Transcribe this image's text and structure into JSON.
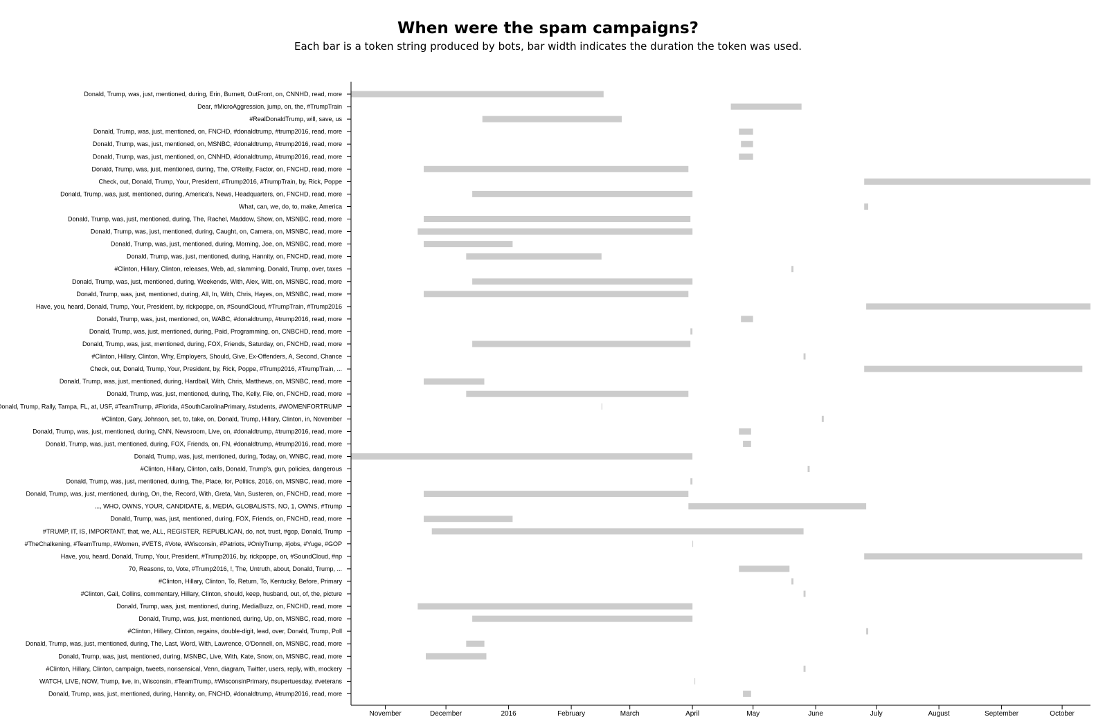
{
  "chart_data": {
    "type": "bar",
    "orientation": "horizontal-timeline",
    "title": "When were the spam campaigns?",
    "subtitle": "Each bar is a token string produced by bots, bar width indicates the duration the token was used.",
    "xlim": [
      "2015-10-15",
      "2016-10-15"
    ],
    "x_ticks": [
      {
        "date": "2015-11-01",
        "label": "November"
      },
      {
        "date": "2015-12-01",
        "label": "December"
      },
      {
        "date": "2016-01-01",
        "label": "2016"
      },
      {
        "date": "2016-02-01",
        "label": "February"
      },
      {
        "date": "2016-03-01",
        "label": "March"
      },
      {
        "date": "2016-04-01",
        "label": "April"
      },
      {
        "date": "2016-05-01",
        "label": "May"
      },
      {
        "date": "2016-06-01",
        "label": "June"
      },
      {
        "date": "2016-07-01",
        "label": "July"
      },
      {
        "date": "2016-08-01",
        "label": "August"
      },
      {
        "date": "2016-09-01",
        "label": "September"
      },
      {
        "date": "2016-10-01",
        "label": "October"
      }
    ],
    "bar_color": "#cccccc",
    "grid": false,
    "items": [
      {
        "label": "Donald, Trump, was, just, mentioned, during, Erin, Burnett, OutFront, on, CNNHD, read, more",
        "start": "2015-10-15",
        "end": "2016-02-17"
      },
      {
        "label": "Dear, #MicroAggression, jump, on, the, #TrumpTrain",
        "start": "2016-04-20",
        "end": "2016-05-25"
      },
      {
        "label": "#RealDonaldTrump, will, save, us",
        "start": "2015-12-19",
        "end": "2016-02-26"
      },
      {
        "label": "Donald, Trump, was, just, mentioned, on, FNCHD, #donaldtrump, #trump2016, read, more",
        "start": "2016-04-24",
        "end": "2016-05-01"
      },
      {
        "label": "Donald, Trump, was, just, mentioned, on, MSNBC, #donaldtrump, #trump2016, read, more",
        "start": "2016-04-25",
        "end": "2016-05-01"
      },
      {
        "label": "Donald, Trump, was, just, mentioned, on, CNNHD, #donaldtrump, #trump2016, read, more",
        "start": "2016-04-24",
        "end": "2016-05-01"
      },
      {
        "label": "Donald, Trump, was, just, mentioned, during, The, O'Reilly, Factor, on, FNCHD, read, more",
        "start": "2015-11-20",
        "end": "2016-03-30"
      },
      {
        "label": "Check, out, Donald, Trump, Your, President, #Trump2016, #TrumpTrain, by, Rick, Poppe",
        "start": "2016-06-25",
        "end": "2016-10-15"
      },
      {
        "label": "Donald, Trump, was, just, mentioned, during, America's, News, Headquarters, on, FNCHD, read, more",
        "start": "2015-12-14",
        "end": "2016-04-01"
      },
      {
        "label": "What, can, we, do, to, make, America",
        "start": "2016-06-25",
        "end": "2016-06-27"
      },
      {
        "label": "Donald, Trump, was, just, mentioned, during, The, Rachel, Maddow, Show, on, MSNBC, read, more",
        "start": "2015-11-20",
        "end": "2016-03-31"
      },
      {
        "label": "Donald, Trump, was, just, mentioned, during, Caught, on, Camera, on, MSNBC, read, more",
        "start": "2015-11-17",
        "end": "2016-04-01"
      },
      {
        "label": "Donald, Trump, was, just, mentioned, during, Morning, Joe, on, MSNBC, read, more",
        "start": "2015-11-20",
        "end": "2016-01-03"
      },
      {
        "label": "Donald, Trump, was, just, mentioned, during, Hannity, on, FNCHD, read, more",
        "start": "2015-12-11",
        "end": "2016-02-16"
      },
      {
        "label": "#Clinton, Hillary, Clinton, releases, Web, ad, slamming, Donald, Trump, over, taxes",
        "start": "2016-05-20",
        "end": "2016-05-21"
      },
      {
        "label": "Donald, Trump, was, just, mentioned, during, Weekends, With, Alex, Witt, on, MSNBC, read, more",
        "start": "2015-12-14",
        "end": "2016-04-01"
      },
      {
        "label": "Donald, Trump, was, just, mentioned, during, All, In, With, Chris, Hayes, on, MSNBC, read, more",
        "start": "2015-11-20",
        "end": "2016-03-30"
      },
      {
        "label": "Have, you, heard, Donald, Trump, Your, President, by, rickpoppe, on, #SoundCloud, #TrumpTrain, #Trump2016",
        "start": "2016-06-26",
        "end": "2016-10-15"
      },
      {
        "label": "Donald, Trump, was, just, mentioned, on, WABC, #donaldtrump, #trump2016, read, more",
        "start": "2016-04-25",
        "end": "2016-05-01"
      },
      {
        "label": "Donald, Trump, was, just, mentioned, during, Paid, Programming, on, CNBCHD, read, more",
        "start": "2016-03-31",
        "end": "2016-04-01"
      },
      {
        "label": "Donald, Trump, was, just, mentioned, during, FOX, Friends, Saturday, on, FNCHD, read, more",
        "start": "2015-12-14",
        "end": "2016-03-31"
      },
      {
        "label": "#Clinton, Hillary, Clinton, Why, Employers, Should, Give, Ex-Offenders, A, Second, Chance",
        "start": "2016-05-26",
        "end": "2016-05-27"
      },
      {
        "label": "Check, out, Donald, Trump, Your, President, by, Rick, Poppe, #Trump2016, #TrumpTrain, ...",
        "start": "2016-06-25",
        "end": "2016-10-11"
      },
      {
        "label": "Donald, Trump, was, just, mentioned, during, Hardball, With, Chris, Matthews, on, MSNBC, read, more",
        "start": "2015-11-20",
        "end": "2015-12-20"
      },
      {
        "label": "Donald, Trump, was, just, mentioned, during, The, Kelly, File, on, FNCHD, read, more",
        "start": "2015-12-11",
        "end": "2016-03-30"
      },
      {
        "label": "Donald, Trump, Rally, Tampa, FL, at, USF, #TeamTrump, #Florida, #SouthCarolinaPrimary, #students, #WOMENFORTRUMP",
        "start": "2016-02-16",
        "end": "2016-02-16"
      },
      {
        "label": "#Clinton, Gary, Johnson, set, to, take, on, Donald, Trump, Hillary, Clinton, in, November",
        "start": "2016-06-04",
        "end": "2016-06-05"
      },
      {
        "label": "Donald, Trump, was, just, mentioned, during, CNN, Newsroom, Live, on, #donaldtrump, #trump2016, read, more",
        "start": "2016-04-24",
        "end": "2016-04-30"
      },
      {
        "label": "Donald, Trump, was, just, mentioned, during, FOX, Friends, on, FN, #donaldtrump, #trump2016, read, more",
        "start": "2016-04-26",
        "end": "2016-04-30"
      },
      {
        "label": "Donald, Trump, was, just, mentioned, during, Today, on, WNBC, read, more",
        "start": "2015-10-15",
        "end": "2016-04-01"
      },
      {
        "label": "#Clinton, Hillary, Clinton, calls, Donald, Trump's, gun, policies, dangerous",
        "start": "2016-05-28",
        "end": "2016-05-29"
      },
      {
        "label": "Donald, Trump, was, just, mentioned, during, The, Place, for, Politics, 2016, on, MSNBC, read, more",
        "start": "2016-03-31",
        "end": "2016-04-01"
      },
      {
        "label": "Donald, Trump, was, just, mentioned, during, On, the, Record, With, Greta, Van, Susteren, on, FNCHD, read, more",
        "start": "2015-11-20",
        "end": "2016-03-30"
      },
      {
        "label": "..., WHO, OWNS, YOUR, CANDIDATE, &, MEDIA, GLOBALISTS, NO, 1, OWNS, #Trump",
        "start": "2016-03-30",
        "end": "2016-06-26"
      },
      {
        "label": "Donald, Trump, was, just, mentioned, during, FOX, Friends, on, FNCHD, read, more",
        "start": "2015-11-20",
        "end": "2016-01-03"
      },
      {
        "label": "#TRUMP, IT, IS, IMPORTANT, that, we, ALL, REGISTER, REPUBLICAN, do, not, trust, #gop, Donald, Trump",
        "start": "2015-11-24",
        "end": "2016-05-26"
      },
      {
        "label": "#TheChalkening, #TeamTrump, #Women, #VETS, #Vote, #Wisconsin, #Patriots, #OnlyTrump, #jobs, #Yuge, #GOP",
        "start": "2016-04-01",
        "end": "2016-04-01"
      },
      {
        "label": "Have, you, heard, Donald, Trump, Your, President, #Trump2016, by, rickpoppe, on, #SoundCloud, #np",
        "start": "2016-06-25",
        "end": "2016-10-11"
      },
      {
        "label": "70, Reasons, to, Vote, #Trump2016, !, The, Untruth, about, Donald, Trump, ...",
        "start": "2016-04-24",
        "end": "2016-05-19"
      },
      {
        "label": "#Clinton, Hillary, Clinton, To, Return, To, Kentucky, Before, Primary",
        "start": "2016-05-20",
        "end": "2016-05-21"
      },
      {
        "label": "#Clinton, Gail, Collins, commentary, Hillary, Clinton, should, keep, husband, out, of, the, picture",
        "start": "2016-05-26",
        "end": "2016-05-27"
      },
      {
        "label": "Donald, Trump, was, just, mentioned, during, MediaBuzz, on, FNCHD, read, more",
        "start": "2015-11-17",
        "end": "2016-04-01"
      },
      {
        "label": "Donald, Trump, was, just, mentioned, during, Up, on, MSNBC, read, more",
        "start": "2015-12-14",
        "end": "2016-04-01"
      },
      {
        "label": "#Clinton, Hillary, Clinton, regains, double-digit, lead, over, Donald, Trump, Poll",
        "start": "2016-06-26",
        "end": "2016-06-27"
      },
      {
        "label": "Donald, Trump, was, just, mentioned, during, The, Last, Word, With, Lawrence, O'Donnell, on, MSNBC, read, more",
        "start": "2015-12-11",
        "end": "2015-12-20"
      },
      {
        "label": "Donald, Trump, was, just, mentioned, during, MSNBC, Live, With, Kate, Snow, on, MSNBC, read, more",
        "start": "2015-11-21",
        "end": "2015-12-21"
      },
      {
        "label": "#Clinton, Hillary, Clinton, campaign, tweets, nonsensical, Venn, diagram, Twitter, users, reply, with, mockery",
        "start": "2016-05-26",
        "end": "2016-05-27"
      },
      {
        "label": "WATCH, LIVE, NOW, Trump, live, in, Wisconsin, #TeamTrump, #WisconsinPrimary, #supertuesday, #veterans",
        "start": "2016-04-02",
        "end": "2016-04-02"
      },
      {
        "label": "Donald, Trump, was, just, mentioned, during, Hannity, on, FNCHD, #donaldtrump, #trump2016, read, more",
        "start": "2016-04-26",
        "end": "2016-04-30"
      }
    ]
  }
}
